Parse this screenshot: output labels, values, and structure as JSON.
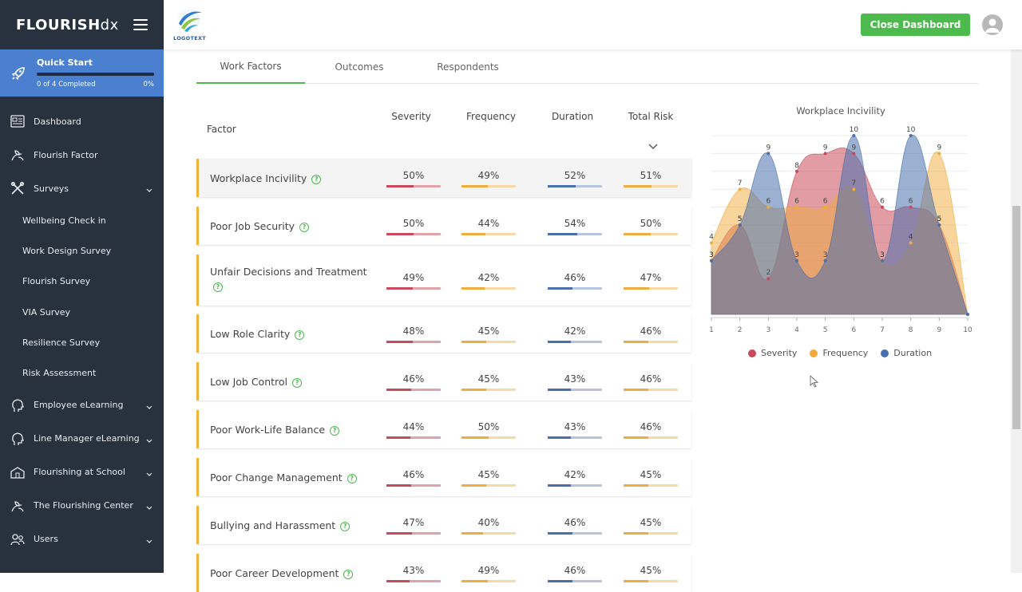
{
  "brand": {
    "name_main": "FLOURISH",
    "name_suffix": "dx"
  },
  "quick_start": {
    "title": "Quick Start",
    "progress_text": "0 of 4 Completed",
    "percent_text": "0%",
    "progress": 0
  },
  "nav": {
    "dashboard": "Dashboard",
    "flourish_factor": "Flourish Factor",
    "surveys": "Surveys",
    "surveys_items": [
      "Wellbeing Check in",
      "Work Design Survey",
      "Flourish Survey",
      "VIA Survey",
      "Resilience Survey",
      "Risk Assessment"
    ],
    "employee_elearning": "Employee eLearning",
    "line_manager_elearning": "Line Manager eLearning",
    "flourishing_at_school": "Flourishing at School",
    "flourishing_center": "The Flourishing Center",
    "users": "Users"
  },
  "header": {
    "logo_text": "LOGOTEXT",
    "close_button": "Close Dashboard"
  },
  "tabs": [
    "Work Factors",
    "Outcomes",
    "Respondents"
  ],
  "table": {
    "headers": {
      "factor": "Factor",
      "severity": "Severity",
      "frequency": "Frequency",
      "duration": "Duration",
      "total_risk": "Total Risk"
    },
    "help_glyph": "?",
    "rows": [
      {
        "factor": "Workplace Incivility",
        "severity": "50%",
        "frequency": "49%",
        "duration": "52%",
        "total": "51%"
      },
      {
        "factor": "Poor Job Security",
        "severity": "50%",
        "frequency": "44%",
        "duration": "54%",
        "total": "50%"
      },
      {
        "factor": "Unfair Decisions and Treatment",
        "severity": "49%",
        "frequency": "42%",
        "duration": "46%",
        "total": "47%"
      },
      {
        "factor": "Low Role Clarity",
        "severity": "48%",
        "frequency": "45%",
        "duration": "42%",
        "total": "46%"
      },
      {
        "factor": "Low Job Control",
        "severity": "46%",
        "frequency": "45%",
        "duration": "43%",
        "total": "46%"
      },
      {
        "factor": "Poor Work-Life Balance",
        "severity": "44%",
        "frequency": "50%",
        "duration": "43%",
        "total": "46%"
      },
      {
        "factor": "Poor Change Management",
        "severity": "46%",
        "frequency": "45%",
        "duration": "42%",
        "total": "45%"
      },
      {
        "factor": "Bullying and Harassment",
        "severity": "47%",
        "frequency": "40%",
        "duration": "46%",
        "total": "45%"
      },
      {
        "factor": "Poor Career Development",
        "severity": "43%",
        "frequency": "49%",
        "duration": "46%",
        "total": "45%"
      }
    ]
  },
  "colors": {
    "severity": "#c94a5a",
    "severity_light": "#e0a2ab",
    "frequency": "#f0ac3c",
    "frequency_light": "#f7d9a4",
    "duration": "#4a6fad",
    "duration_light": "#b7c4dd",
    "accent_green": "#4cba4c",
    "sidebar_bg": "#28323f",
    "quickstart_bg": "#4b7fd0"
  },
  "chart_data": {
    "type": "area",
    "title": "Workplace Incivility",
    "x": [
      1,
      2,
      3,
      4,
      5,
      6,
      7,
      8,
      9,
      10
    ],
    "ylim": [
      0,
      10
    ],
    "series": [
      {
        "name": "Severity",
        "values": [
          3,
          5,
          2,
          8,
          9,
          9,
          6,
          6,
          5,
          0
        ]
      },
      {
        "name": "Frequency",
        "values": [
          4,
          7,
          6,
          6,
          6,
          7,
          3,
          4,
          9,
          0
        ]
      },
      {
        "name": "Duration",
        "values": [
          3,
          5,
          9,
          3,
          3,
          10,
          3,
          10,
          5,
          0
        ]
      }
    ],
    "legend_position": "bottom",
    "grid": true
  }
}
